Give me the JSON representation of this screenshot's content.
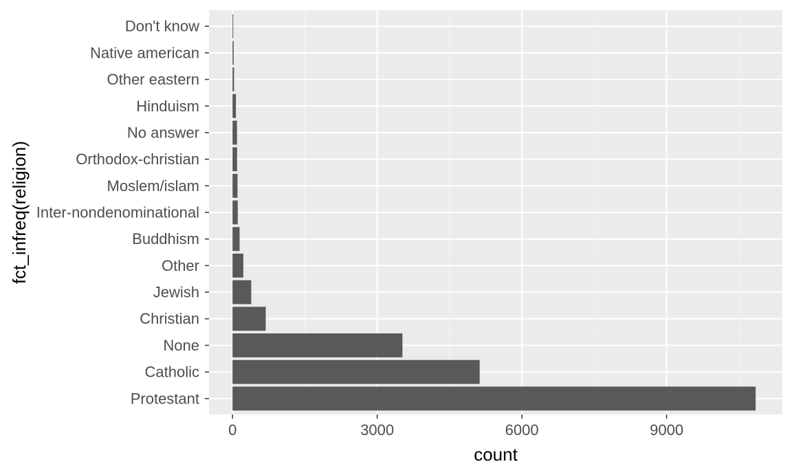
{
  "colors": {
    "panel_background": "#ebebeb",
    "major_grid": "#ffffff",
    "minor_grid": "#f5f5f5",
    "bar_fill": "#595959",
    "tick_text": "#4d4d4d",
    "tick_mark": "#333333",
    "axis_title_text": "#000000"
  },
  "chart_data": {
    "type": "bar",
    "orientation": "horizontal",
    "title": "",
    "xlabel": "count",
    "ylabel": "fct_infreq(religion)",
    "categories": [
      "Protestant",
      "Catholic",
      "None",
      "Christian",
      "Jewish",
      "Other",
      "Buddhism",
      "Inter-nondenominational",
      "Moslem/islam",
      "Orthodox-christian",
      "No answer",
      "Hinduism",
      "Other eastern",
      "Native american",
      "Don't know"
    ],
    "values": [
      10846,
      5124,
      3523,
      689,
      388,
      224,
      147,
      109,
      104,
      95,
      93,
      71,
      32,
      23,
      15
    ],
    "xlim": [
      0,
      11400
    ],
    "x_ticks": [
      0,
      3000,
      6000,
      9000
    ],
    "x_tick_labels": [
      "0",
      "3000",
      "6000",
      "9000"
    ],
    "x_minor_ticks": [
      1500,
      4500,
      7500,
      10500
    ],
    "grid": true,
    "legend": "none"
  }
}
